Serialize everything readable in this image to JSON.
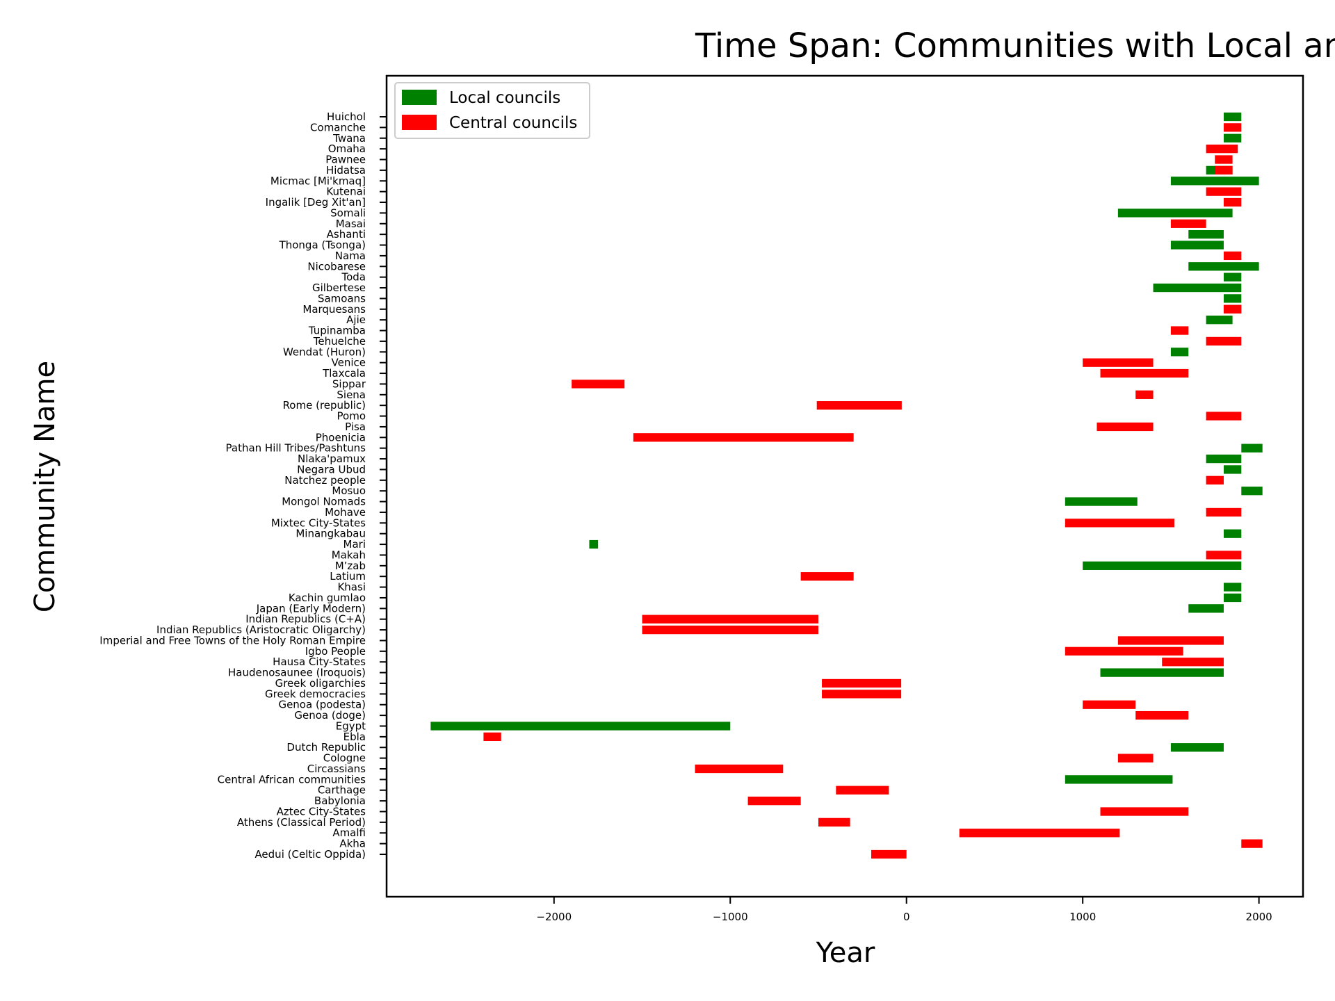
{
  "chart_data": {
    "type": "bar",
    "orientation": "horizontal-gantt",
    "title": "Time Span: Communities with Local and Central Councils",
    "xlabel": "Year",
    "ylabel": "Community Name",
    "xlim": [
      -2950,
      2250
    ],
    "xticks": [
      -2000,
      -1000,
      0,
      1000,
      2000
    ],
    "xtick_labels": [
      "−2000",
      "−1000",
      "0",
      "1000",
      "2000"
    ],
    "grid": false,
    "legend_position": "top-left",
    "colors": {
      "Local councils": "#008000",
      "Central councils": "#ff0000"
    },
    "legend": [
      "Local councils",
      "Central councils"
    ],
    "categories": [
      "Aedui (Celtic Oppida)",
      "Akha",
      "Amalfi",
      "Athens (Classical Period)",
      "Aztec City-States",
      "Babylonia",
      "Carthage",
      "Central African communities",
      "Circassians",
      "Cologne",
      "Dutch Republic",
      "Ebla",
      "Egypt",
      "Genoa (doge)",
      "Genoa (podesta)",
      "Greek democracies",
      "Greek oligarchies",
      "Haudenosaunee (Iroquois)",
      "Hausa City-States",
      "Igbo People",
      "Imperial and Free Towns of the Holy Roman Empire",
      "Indian Republics (Aristocratic Oligarchy)",
      "Indian Republics (C+A)",
      "Japan (Early Modern)",
      "Kachin gumlao",
      "Khasi",
      "Latium",
      "M’zab",
      "Makah",
      "Mari",
      "Minangkabau",
      "Mixtec City-States",
      "Mohave",
      "Mongol Nomads",
      "Mosuo",
      "Natchez people",
      "Negara Ubud",
      "Nlaka'pamux",
      "Pathan Hill Tribes/Pashtuns",
      "Phoenicia",
      "Pisa",
      "Pomo",
      "Rome (republic)",
      "Siena",
      "Sippar",
      "Tlaxcala",
      "Venice",
      "Wendat (Huron)",
      "Tehuelche",
      "Tupinamba",
      "Ajie",
      "Marquesans",
      "Samoans",
      "Gilbertese",
      "Toda",
      "Nicobarese",
      "Nama",
      "Thonga (Tsonga)",
      "Ashanti",
      "Masai",
      "Somali",
      "Ingalik [Deg Xit'an]",
      "Kutenai",
      "Micmac [Mi'kmaq]",
      "Hidatsa",
      "Pawnee",
      "Omaha",
      "Twana",
      "Comanche",
      "Huichol"
    ],
    "series": [
      {
        "name": "Local councils",
        "bars": [
          {
            "category": "Central African communities",
            "start": 900,
            "end": 1510
          },
          {
            "category": "Dutch Republic",
            "start": 1500,
            "end": 1800
          },
          {
            "category": "Egypt",
            "start": -2700,
            "end": -1000
          },
          {
            "category": "Haudenosaunee (Iroquois)",
            "start": 1100,
            "end": 1800
          },
          {
            "category": "Japan (Early Modern)",
            "start": 1600,
            "end": 1800
          },
          {
            "category": "Kachin gumlao",
            "start": 1800,
            "end": 1900
          },
          {
            "category": "Khasi",
            "start": 1800,
            "end": 1900
          },
          {
            "category": "M’zab",
            "start": 1000,
            "end": 1900
          },
          {
            "category": "Mari",
            "start": -1800,
            "end": -1750
          },
          {
            "category": "Minangkabau",
            "start": 1800,
            "end": 1900
          },
          {
            "category": "Mongol Nomads",
            "start": 900,
            "end": 1310
          },
          {
            "category": "Mosuo",
            "start": 1900,
            "end": 2020
          },
          {
            "category": "Negara Ubud",
            "start": 1800,
            "end": 1900
          },
          {
            "category": "Nlaka'pamux",
            "start": 1700,
            "end": 1900
          },
          {
            "category": "Pathan Hill Tribes/Pashtuns",
            "start": 1900,
            "end": 2020
          },
          {
            "category": "Wendat (Huron)",
            "start": 1500,
            "end": 1600
          },
          {
            "category": "Ajie",
            "start": 1700,
            "end": 1850
          },
          {
            "category": "Marquesans",
            "start": 1800,
            "end": 1900
          },
          {
            "category": "Samoans",
            "start": 1800,
            "end": 1900
          },
          {
            "category": "Gilbertese",
            "start": 1400,
            "end": 1900
          },
          {
            "category": "Toda",
            "start": 1800,
            "end": 1900
          },
          {
            "category": "Nicobarese",
            "start": 1600,
            "end": 2000
          },
          {
            "category": "Thonga (Tsonga)",
            "start": 1500,
            "end": 1800
          },
          {
            "category": "Ashanti",
            "start": 1600,
            "end": 1800
          },
          {
            "category": "Somali",
            "start": 1200,
            "end": 1850
          },
          {
            "category": "Micmac [Mi'kmaq]",
            "start": 1500,
            "end": 2000
          },
          {
            "category": "Hidatsa",
            "start": 1700,
            "end": 1850
          },
          {
            "category": "Twana",
            "start": 1800,
            "end": 1900
          },
          {
            "category": "Huichol",
            "start": 1800,
            "end": 1900
          }
        ]
      },
      {
        "name": "Central councils",
        "bars": [
          {
            "category": "Aedui (Celtic Oppida)",
            "start": -200,
            "end": 0
          },
          {
            "category": "Akha",
            "start": 1900,
            "end": 2020
          },
          {
            "category": "Amalfi",
            "start": 300,
            "end": 1210
          },
          {
            "category": "Athens (Classical Period)",
            "start": -500,
            "end": -320
          },
          {
            "category": "Aztec City-States",
            "start": 1100,
            "end": 1600
          },
          {
            "category": "Babylonia",
            "start": -900,
            "end": -600
          },
          {
            "category": "Carthage",
            "start": -400,
            "end": -100
          },
          {
            "category": "Circassians",
            "start": -1200,
            "end": -700
          },
          {
            "category": "Cologne",
            "start": 1200,
            "end": 1400
          },
          {
            "category": "Ebla",
            "start": -2400,
            "end": -2300
          },
          {
            "category": "Genoa (doge)",
            "start": 1300,
            "end": 1600
          },
          {
            "category": "Genoa (podesta)",
            "start": 1000,
            "end": 1300
          },
          {
            "category": "Greek democracies",
            "start": -480,
            "end": -30
          },
          {
            "category": "Greek oligarchies",
            "start": -480,
            "end": -30
          },
          {
            "category": "Hausa City-States",
            "start": 1450,
            "end": 1800
          },
          {
            "category": "Igbo People",
            "start": 900,
            "end": 1570
          },
          {
            "category": "Imperial and Free Towns of the Holy Roman Empire",
            "start": 1200,
            "end": 1800
          },
          {
            "category": "Indian Republics (Aristocratic Oligarchy)",
            "start": -1500,
            "end": -500
          },
          {
            "category": "Indian Republics (C+A)",
            "start": -1500,
            "end": -500
          },
          {
            "category": "Latium",
            "start": -600,
            "end": -300
          },
          {
            "category": "Makah",
            "start": 1700,
            "end": 1900
          },
          {
            "category": "Mixtec City-States",
            "start": 900,
            "end": 1520
          },
          {
            "category": "Mohave",
            "start": 1700,
            "end": 1900
          },
          {
            "category": "Natchez people",
            "start": 1700,
            "end": 1800
          },
          {
            "category": "Phoenicia",
            "start": -1550,
            "end": -300
          },
          {
            "category": "Pisa",
            "start": 1080,
            "end": 1400
          },
          {
            "category": "Pomo",
            "start": 1700,
            "end": 1900
          },
          {
            "category": "Rome (republic)",
            "start": -509,
            "end": -27
          },
          {
            "category": "Siena",
            "start": 1300,
            "end": 1400
          },
          {
            "category": "Sippar",
            "start": -1900,
            "end": -1600
          },
          {
            "category": "Tlaxcala",
            "start": 1100,
            "end": 1600
          },
          {
            "category": "Venice",
            "start": 1000,
            "end": 1400
          },
          {
            "category": "Tehuelche",
            "start": 1700,
            "end": 1900
          },
          {
            "category": "Tupinamba",
            "start": 1500,
            "end": 1600
          },
          {
            "category": "Marquesans",
            "start": 1800,
            "end": 1900
          },
          {
            "category": "Nama",
            "start": 1800,
            "end": 1900
          },
          {
            "category": "Masai",
            "start": 1500,
            "end": 1700
          },
          {
            "category": "Ingalik [Deg Xit'an]",
            "start": 1800,
            "end": 1900
          },
          {
            "category": "Kutenai",
            "start": 1700,
            "end": 1900
          },
          {
            "category": "Hidatsa",
            "start": 1750,
            "end": 1850
          },
          {
            "category": "Pawnee",
            "start": 1750,
            "end": 1850
          },
          {
            "category": "Omaha",
            "start": 1700,
            "end": 1880
          },
          {
            "category": "Comanche",
            "start": 1800,
            "end": 1900
          }
        ]
      }
    ]
  }
}
